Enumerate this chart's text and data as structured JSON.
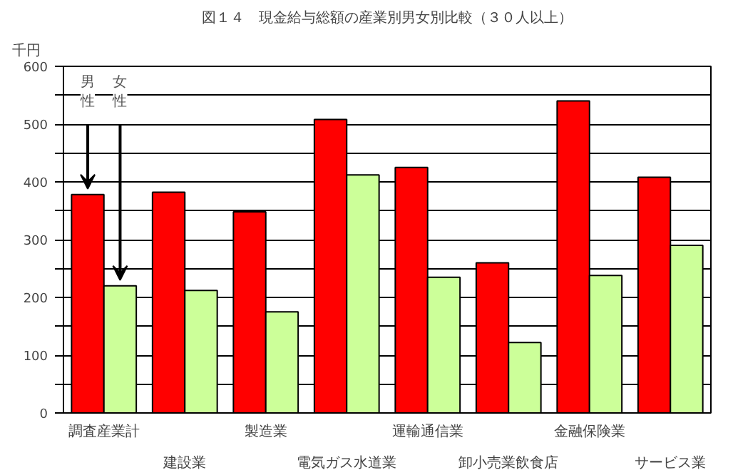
{
  "chart_data": {
    "type": "bar",
    "title": "図１４　現金給与総額の産業別男女別比較（３０人以上）",
    "ylabel": "千円",
    "categories": [
      "調査産業計",
      "建設業",
      "製造業",
      "電気ガス水道業",
      "運輸通信業",
      "卸小売業飲食店",
      "金融保険業",
      "サービス業"
    ],
    "series": [
      {
        "name": "男性",
        "color": "#ff0000",
        "values": [
          378,
          382,
          348,
          508,
          425,
          260,
          540,
          408
        ]
      },
      {
        "name": "女性",
        "color": "#ccff99",
        "values": [
          220,
          212,
          175,
          412,
          235,
          122,
          238,
          290
        ]
      }
    ],
    "ylim": [
      0,
      600
    ],
    "yticks": [
      0,
      {
        "value": 50,
        "label": null
      },
      100,
      {
        "value": 150,
        "label": null
      },
      200,
      {
        "value": 250,
        "label": null
      },
      300,
      {
        "value": 350,
        "label": null
      },
      400,
      {
        "value": 450,
        "label": null
      },
      500,
      {
        "value": 550,
        "label": null
      },
      600
    ],
    "grid": "y"
  }
}
